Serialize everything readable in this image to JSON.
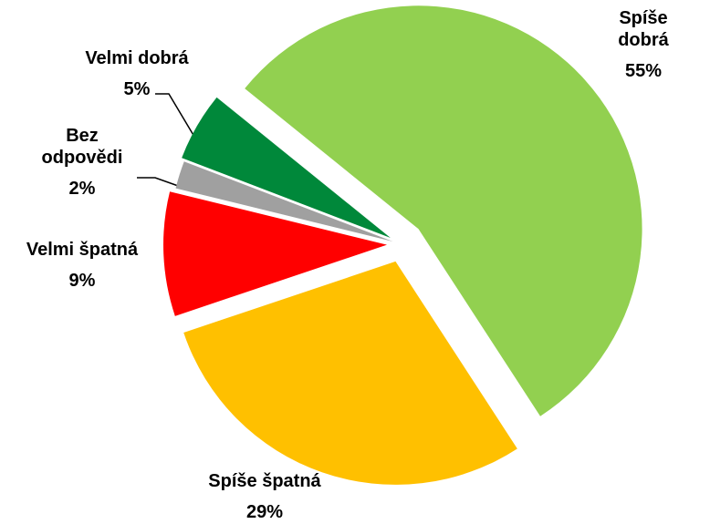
{
  "chart_data": {
    "type": "pie",
    "categories": [
      "Spíše dobrá",
      "Spíše špatná",
      "Velmi špatná",
      "Bez odpovědi",
      "Velmi dobrá"
    ],
    "values": [
      55,
      29,
      9,
      2,
      5
    ],
    "value_labels": [
      "55%",
      "29%",
      "9%",
      "2%",
      "5%"
    ],
    "colors": [
      "#92d050",
      "#ffc000",
      "#ff0000",
      "#a0a0a0",
      "#00883a"
    ]
  }
}
